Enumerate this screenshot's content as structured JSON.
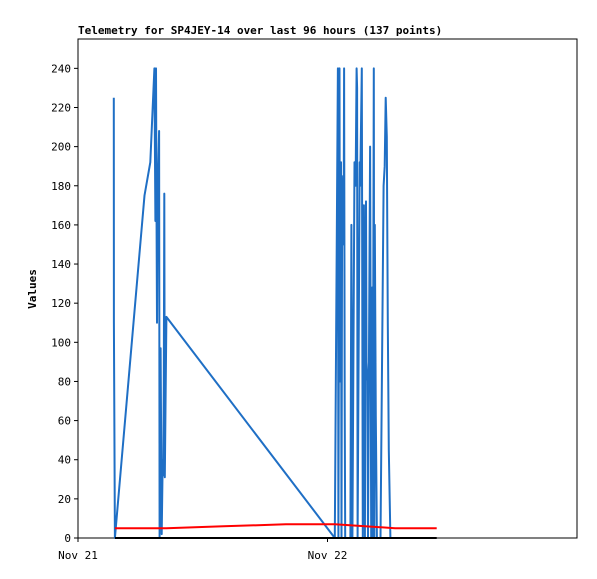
{
  "chart_data": {
    "type": "line",
    "title": "Telemetry for SP4JEY-14 over last 96 hours (137 points)",
    "xlabel": "",
    "ylabel": "Values",
    "xlim": [
      0,
      48
    ],
    "ylim": [
      0,
      255
    ],
    "x_ticks": [
      {
        "x": 0,
        "label": "Nov 21"
      },
      {
        "x": 24,
        "label": "Nov 22"
      }
    ],
    "y_ticks": [
      0,
      20,
      40,
      60,
      80,
      100,
      120,
      140,
      160,
      180,
      200,
      220,
      240
    ],
    "grid": false,
    "colors": {
      "blue": "#1f6fc5",
      "red": "#ff0000",
      "black": "#000000"
    },
    "series": [
      {
        "color": "#1f6fc5",
        "points": [
          [
            3.44,
            225
          ],
          [
            3.45,
            110
          ],
          [
            3.55,
            0
          ],
          [
            6.4,
            175
          ],
          [
            6.95,
            192
          ],
          [
            7.35,
            240
          ],
          [
            7.45,
            162
          ],
          [
            7.5,
            240
          ],
          [
            7.55,
            170
          ],
          [
            7.6,
            110
          ],
          [
            7.65,
            172
          ],
          [
            7.8,
            208
          ],
          [
            7.85,
            0
          ],
          [
            7.95,
            97
          ],
          [
            8.05,
            2
          ],
          [
            8.15,
            40
          ],
          [
            8.2,
            32
          ],
          [
            8.25,
            78
          ],
          [
            8.3,
            176
          ],
          [
            8.35,
            31
          ],
          [
            8.5,
            113
          ],
          [
            24.7,
            0
          ],
          [
            25.0,
            240
          ],
          [
            25.05,
            0
          ],
          [
            25.15,
            240
          ],
          [
            25.2,
            80
          ],
          [
            25.3,
            192
          ],
          [
            25.35,
            0
          ],
          [
            25.4,
            168
          ],
          [
            25.5,
            185
          ],
          [
            25.55,
            150
          ],
          [
            25.6,
            240
          ],
          [
            25.65,
            70
          ],
          [
            25.7,
            0
          ],
          [
            26.2,
            0
          ],
          [
            26.3,
            160
          ],
          [
            26.4,
            0
          ],
          [
            26.6,
            192
          ],
          [
            26.7,
            180
          ],
          [
            26.8,
            240
          ],
          [
            26.85,
            230
          ],
          [
            26.9,
            0
          ],
          [
            27.1,
            192
          ],
          [
            27.15,
            180
          ],
          [
            27.3,
            240
          ],
          [
            27.4,
            0
          ],
          [
            27.5,
            170
          ],
          [
            27.55,
            90
          ],
          [
            27.6,
            0
          ],
          [
            27.7,
            172
          ],
          [
            27.75,
            90
          ],
          [
            27.85,
            80
          ],
          [
            27.9,
            0
          ],
          [
            28.1,
            200
          ],
          [
            28.2,
            0
          ],
          [
            28.3,
            128
          ],
          [
            28.35,
            0
          ],
          [
            28.45,
            240
          ],
          [
            28.5,
            0
          ],
          [
            28.55,
            160
          ],
          [
            28.65,
            62
          ],
          [
            28.75,
            0
          ],
          [
            29.1,
            0
          ],
          [
            29.4,
            180
          ],
          [
            29.5,
            190
          ],
          [
            29.6,
            225
          ],
          [
            29.7,
            205
          ],
          [
            29.8,
            110
          ],
          [
            29.9,
            45
          ],
          [
            30.05,
            0
          ]
        ]
      },
      {
        "color": "#ff0000",
        "points": [
          [
            3.55,
            5
          ],
          [
            8.5,
            5
          ],
          [
            14,
            6
          ],
          [
            20,
            7
          ],
          [
            24.7,
            7
          ],
          [
            30.5,
            5
          ],
          [
            34.5,
            5
          ]
        ]
      },
      {
        "color": "#000000",
        "points": [
          [
            3.55,
            0
          ],
          [
            34.5,
            0
          ]
        ]
      }
    ]
  }
}
